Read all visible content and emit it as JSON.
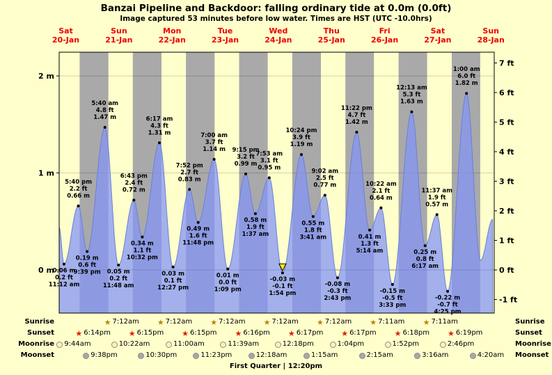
{
  "chart_data": {
    "type": "area",
    "title": "Banzai Pipeline and Backdoor: falling ordinary tide at 0.0m (0.0ft)",
    "subtitle": "Image captured 53 minutes before low water. Times are HST (UTC -10.0hrs)",
    "y_left": {
      "unit": "m",
      "ticks": [
        0,
        1,
        2
      ]
    },
    "y_right": {
      "unit": "ft",
      "ticks": [
        -1,
        0,
        1,
        2,
        3,
        4,
        5,
        6,
        7
      ]
    },
    "time_reference": "hours from Sat 20-Jan 00:00",
    "time_domain_hours": [
      9.0,
      205.5
    ],
    "days": [
      {
        "dow": "Sat",
        "date": "20-Jan"
      },
      {
        "dow": "Sun",
        "date": "21-Jan"
      },
      {
        "dow": "Mon",
        "date": "22-Jan"
      },
      {
        "dow": "Tue",
        "date": "23-Jan"
      },
      {
        "dow": "Wed",
        "date": "24-Jan"
      },
      {
        "dow": "Thu",
        "date": "25-Jan"
      },
      {
        "dow": "Fri",
        "date": "26-Jan"
      },
      {
        "dow": "Sat",
        "date": "27-Jan"
      },
      {
        "dow": "Sun",
        "date": "28-Jan"
      }
    ],
    "night_spans": [
      [
        18.23,
        31.2
      ],
      [
        42.25,
        55.2
      ],
      [
        66.25,
        79.2
      ],
      [
        90.27,
        103.2
      ],
      [
        114.28,
        127.2
      ],
      [
        138.28,
        151.18
      ],
      [
        162.3,
        175.18
      ],
      [
        186.32,
        199.18
      ]
    ],
    "tide_events": [
      {
        "t": 9.0,
        "m": 0.44,
        "edge": true
      },
      {
        "t": 11.2,
        "m": 0.06,
        "pos": "below",
        "lines": [
          "0.06 m",
          "0.2 ft",
          "11:12 am"
        ]
      },
      {
        "t": 17.67,
        "m": 0.66,
        "pos": "above",
        "lines": [
          "5:40 pm",
          "2.2 ft",
          "0.66 m"
        ]
      },
      {
        "t": 21.65,
        "m": 0.19,
        "pos": "below",
        "lines": [
          "0.19 m",
          "0.6 ft",
          "9:39 pm"
        ]
      },
      {
        "t": 29.67,
        "m": 1.47,
        "pos": "above",
        "lines": [
          "5:40 am",
          "4.8 ft",
          "1.47 m"
        ]
      },
      {
        "t": 35.8,
        "m": 0.05,
        "pos": "below",
        "lines": [
          "0.05 m",
          "0.2 ft",
          "11:48 am"
        ]
      },
      {
        "t": 42.72,
        "m": 0.72,
        "pos": "above",
        "lines": [
          "6:43 pm",
          "2.4 ft",
          "0.72 m"
        ]
      },
      {
        "t": 46.53,
        "m": 0.34,
        "pos": "below",
        "lines": [
          "0.34 m",
          "1.1 ft",
          "10:32 pm"
        ]
      },
      {
        "t": 54.28,
        "m": 1.31,
        "pos": "above",
        "lines": [
          "6:17 am",
          "4.3 ft",
          "1.31 m"
        ]
      },
      {
        "t": 60.45,
        "m": 0.03,
        "pos": "below",
        "lines": [
          "0.03 m",
          "0.1 ft",
          "12:27 pm"
        ]
      },
      {
        "t": 67.87,
        "m": 0.83,
        "pos": "above",
        "lines": [
          "7:52 pm",
          "2.7 ft",
          "0.83 m"
        ]
      },
      {
        "t": 71.8,
        "m": 0.49,
        "pos": "below",
        "lines": [
          "0.49 m",
          "1.6 ft",
          "11:48 pm"
        ]
      },
      {
        "t": 79.0,
        "m": 1.14,
        "pos": "above",
        "lines": [
          "7:00 am",
          "3.7 ft",
          "1.14 m"
        ]
      },
      {
        "t": 85.15,
        "m": 0.01,
        "pos": "below",
        "lines": [
          "0.01 m",
          "0.0 ft",
          "1:09 pm"
        ]
      },
      {
        "t": 93.25,
        "m": 0.99,
        "pos": "above",
        "lines": [
          "9:15 pm",
          "3.2 ft",
          "0.99 m"
        ]
      },
      {
        "t": 97.62,
        "m": 0.58,
        "pos": "below",
        "lines": [
          "0.58 m",
          "1.9 ft",
          "1:37 am"
        ]
      },
      {
        "t": 103.88,
        "m": 0.95,
        "pos": "above",
        "lines": [
          "7:53 am",
          "3.1 ft",
          "0.95 m"
        ]
      },
      {
        "t": 109.9,
        "m": -0.03,
        "pos": "below",
        "marker": "current",
        "lines": [
          "-0.03 m",
          "-0.1 ft",
          "1:54 pm"
        ]
      },
      {
        "t": 118.4,
        "m": 1.19,
        "pos": "above",
        "lines": [
          "10:24 pm",
          "3.9 ft",
          "1.19 m"
        ]
      },
      {
        "t": 123.68,
        "m": 0.55,
        "pos": "below",
        "lines": [
          "0.55 m",
          "1.8 ft",
          "3:41 am"
        ]
      },
      {
        "t": 129.03,
        "m": 0.77,
        "pos": "above",
        "lines": [
          "9:02 am",
          "2.5 ft",
          "0.77 m"
        ]
      },
      {
        "t": 134.72,
        "m": -0.08,
        "pos": "below",
        "lines": [
          "-0.08 m",
          "-0.3 ft",
          "2:43 pm"
        ]
      },
      {
        "t": 143.37,
        "m": 1.42,
        "pos": "above",
        "lines": [
          "11:22 pm",
          "4.7 ft",
          "1.42 m"
        ]
      },
      {
        "t": 149.23,
        "m": 0.41,
        "pos": "below",
        "lines": [
          "0.41 m",
          "1.3 ft",
          "5:14 am"
        ]
      },
      {
        "t": 154.37,
        "m": 0.64,
        "pos": "above",
        "lines": [
          "10:22 am",
          "2.1 ft",
          "0.64 m"
        ]
      },
      {
        "t": 159.55,
        "m": -0.15,
        "pos": "below",
        "lines": [
          "-0.15 m",
          "-0.5 ft",
          "3:33 pm"
        ]
      },
      {
        "t": 168.22,
        "m": 1.63,
        "pos": "above",
        "lines": [
          "12:13 am",
          "5.3 ft",
          "1.63 m"
        ]
      },
      {
        "t": 174.28,
        "m": 0.25,
        "pos": "below",
        "lines": [
          "0.25 m",
          "0.8 ft",
          "6:17 am"
        ]
      },
      {
        "t": 179.62,
        "m": 0.57,
        "pos": "above",
        "lines": [
          "11:37 am",
          "1.9 ft",
          "0.57 m"
        ]
      },
      {
        "t": 184.42,
        "m": -0.22,
        "pos": "below",
        "lines": [
          "-0.22 m",
          "-0.7 ft",
          "4:25 pm"
        ]
      },
      {
        "t": 193.0,
        "m": 1.82,
        "pos": "above",
        "lines": [
          "1:00 am",
          "6.0 ft",
          "1.82 m"
        ]
      },
      {
        "t": 199.3,
        "m": 0.1,
        "edge": true
      },
      {
        "t": 204.8,
        "m": 0.52,
        "edge": true
      }
    ],
    "astro": {
      "row_labels": [
        "Sunrise",
        "Sunset",
        "Moonrise",
        "Moonset"
      ],
      "sunrise": [
        {
          "t": 31.2,
          "time": "7:12am"
        },
        {
          "t": 55.2,
          "time": "7:12am"
        },
        {
          "t": 79.2,
          "time": "7:12am"
        },
        {
          "t": 103.2,
          "time": "7:12am"
        },
        {
          "t": 127.2,
          "time": "7:12am"
        },
        {
          "t": 151.18,
          "time": "7:11am"
        },
        {
          "t": 175.18,
          "time": "7:11am"
        }
      ],
      "sunset": [
        {
          "t": 18.23,
          "time": "6:14pm"
        },
        {
          "t": 42.25,
          "time": "6:15pm"
        },
        {
          "t": 66.25,
          "time": "6:15pm"
        },
        {
          "t": 90.27,
          "time": "6:16pm"
        },
        {
          "t": 114.28,
          "time": "6:17pm"
        },
        {
          "t": 138.28,
          "time": "6:17pm"
        },
        {
          "t": 162.3,
          "time": "6:18pm"
        },
        {
          "t": 186.32,
          "time": "6:19pm"
        }
      ],
      "moonrise": [
        {
          "t": 9.73,
          "time": "9:44am"
        },
        {
          "t": 34.37,
          "time": "10:22am"
        },
        {
          "t": 59.0,
          "time": "11:00am"
        },
        {
          "t": 83.65,
          "time": "11:39am"
        },
        {
          "t": 108.3,
          "time": "12:18pm"
        },
        {
          "t": 133.07,
          "time": "1:04pm"
        },
        {
          "t": 157.87,
          "time": "1:52pm"
        },
        {
          "t": 182.77,
          "time": "2:46pm"
        }
      ],
      "moonset": [
        {
          "t": 21.63,
          "time": "9:38pm"
        },
        {
          "t": 46.5,
          "time": "10:30pm"
        },
        {
          "t": 71.38,
          "time": "11:23pm"
        },
        {
          "t": 96.3,
          "time": "12:18am"
        },
        {
          "t": 121.25,
          "time": "1:15am"
        },
        {
          "t": 146.25,
          "time": "2:15am"
        },
        {
          "t": 171.27,
          "time": "3:16am"
        },
        {
          "t": 196.33,
          "time": "4:20am"
        }
      ]
    },
    "footer": {
      "text": "First Quarter | 12:20pm"
    },
    "colors": {
      "background": "#ffffcc",
      "night_band": "#a9a9a9",
      "tide_fill": "rgba(132,150,246,0.75)",
      "tide_stroke": "#6a7fd8",
      "day_label": "#ee0000",
      "sunrise_star": "#b8860b",
      "sunset_star": "#dd2200",
      "moonrise_icon": "#fdf3b3",
      "moonset_icon": "#a8a8a8",
      "current_marker": "#ffee00"
    }
  }
}
